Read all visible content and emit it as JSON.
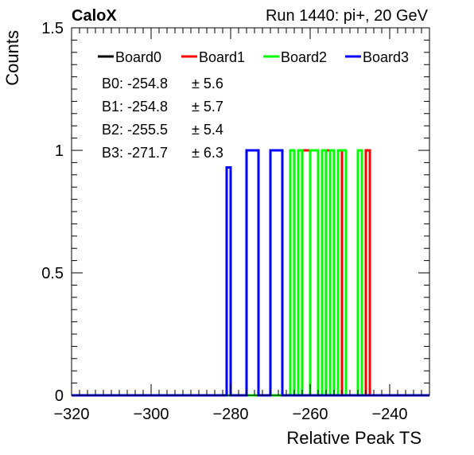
{
  "header": {
    "left_title": "CaloX",
    "right_title": "Run 1440: pi+, 20 GeV"
  },
  "chart_data": {
    "type": "histogram",
    "xlabel": "Relative Peak TS",
    "ylabel": "Counts",
    "xlim": [
      -320,
      -230
    ],
    "ylim": [
      0,
      1.5
    ],
    "x_ticks": [
      -320,
      -300,
      -280,
      -260,
      -240
    ],
    "x_tick_labels": [
      "−320",
      "−300",
      "−280",
      "−260",
      "−240"
    ],
    "y_ticks": [
      0,
      0.5,
      1,
      1.5
    ],
    "y_tick_labels": [
      "0",
      "0.5",
      "1",
      "1.5"
    ],
    "bin_width": 1,
    "legend_position": "top",
    "series": [
      {
        "name": "Board0",
        "color": "#000000",
        "bins": [
          [
            -262,
            1
          ],
          [
            -261,
            1
          ],
          [
            -256,
            1
          ],
          [
            -253,
            1
          ],
          [
            -246,
            1
          ]
        ]
      },
      {
        "name": "Board1",
        "color": "#ff0000",
        "bins": [
          [
            -262,
            1
          ],
          [
            -261,
            1
          ],
          [
            -256,
            1
          ],
          [
            -253,
            1
          ],
          [
            -246,
            1
          ]
        ]
      },
      {
        "name": "Board2",
        "color": "#00ff00",
        "bins": [
          [
            -265,
            1
          ],
          [
            -263,
            1
          ],
          [
            -260,
            1
          ],
          [
            -259,
            1
          ],
          [
            -257,
            1
          ],
          [
            -255,
            1
          ],
          [
            -253,
            1
          ],
          [
            -252,
            1
          ],
          [
            -248,
            1
          ]
        ]
      },
      {
        "name": "Board3",
        "color": "#0000ff",
        "bins": [
          [
            -281,
            0.93
          ],
          [
            -276,
            1
          ],
          [
            -275,
            1
          ],
          [
            -274,
            1
          ],
          [
            -270,
            1
          ],
          [
            -269,
            1
          ],
          [
            -268,
            1
          ]
        ]
      }
    ],
    "annotations": [
      {
        "label": "B0: -254.8",
        "error": "± 5.6"
      },
      {
        "label": "B1: -254.8",
        "error": "± 5.7"
      },
      {
        "label": "B2: -255.5",
        "error": "± 5.4"
      },
      {
        "label": "B3: -271.7",
        "error": "± 6.3"
      }
    ]
  }
}
